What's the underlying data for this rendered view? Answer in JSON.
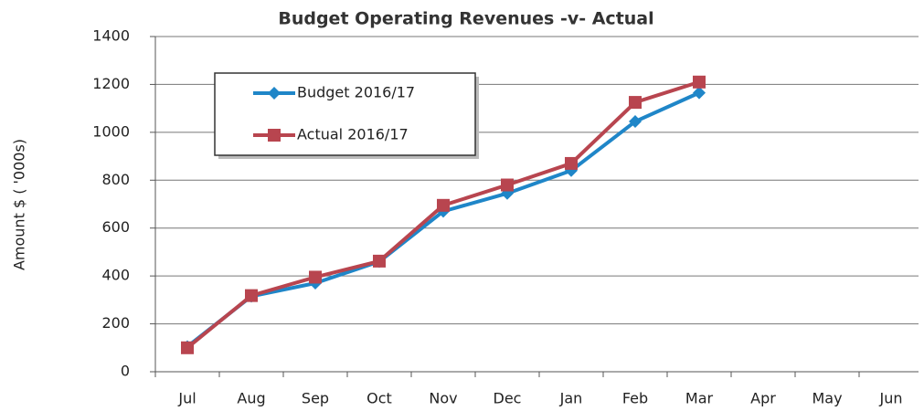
{
  "chart_data": {
    "type": "line",
    "title": "Budget Operating Revenues -v- Actual",
    "y_label": "Amount $ ( '000s)",
    "categories": [
      "Jul",
      "Aug",
      "Sep",
      "Oct",
      "Nov",
      "Dec",
      "Jan",
      "Feb",
      "Mar",
      "Apr",
      "May",
      "Jun"
    ],
    "series": [
      {
        "name": "Budget 2016/17",
        "color": "#1f86c8",
        "marker": "diamond",
        "values": [
          105,
          315,
          370,
          460,
          670,
          745,
          840,
          1045,
          1165,
          null,
          null,
          null
        ]
      },
      {
        "name": "Actual 2016/17",
        "color": "#b8454f",
        "marker": "square",
        "values": [
          100,
          318,
          395,
          462,
          695,
          780,
          870,
          1125,
          1210,
          null,
          null,
          null
        ]
      }
    ],
    "ylim": [
      0,
      1400
    ],
    "yticks": [
      0,
      200,
      400,
      600,
      800,
      1000,
      1200,
      1400
    ],
    "grid": true,
    "legend": "upper left"
  }
}
